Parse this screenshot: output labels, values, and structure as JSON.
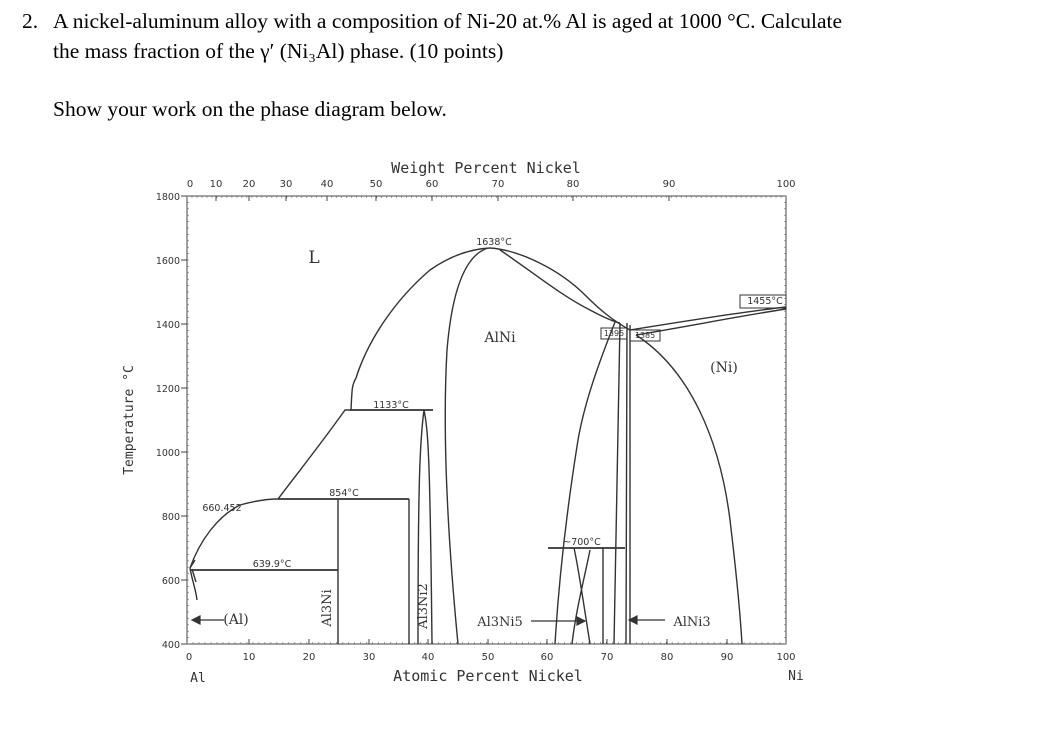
{
  "question": {
    "number": "2.",
    "line1": "A nickel-aluminum alloy with a composition of Ni-20 at.% Al is aged at 1000 °C. Calculate",
    "line2": "the mass fraction of the γ′ (Ni₃Al) phase. (10 points)",
    "instruction": "Show your work on the phase diagram below."
  },
  "diagram": {
    "top_axis_title": "Weight Percent Nickel",
    "bottom_axis_title": "Atomic Percent Nickel",
    "y_axis_title": "Temperature °C",
    "left_element": "Al",
    "right_element": "Ni",
    "top_ticks": [
      "0",
      "10",
      "20",
      "30",
      "40",
      "50",
      "60",
      "70",
      "80",
      "90",
      "100"
    ],
    "bottom_ticks": [
      "0",
      "10",
      "20",
      "30",
      "40",
      "50",
      "60",
      "70",
      "80",
      "90",
      "100"
    ],
    "y_ticks": [
      "1800",
      "1600",
      "1400",
      "1200",
      "1000",
      "800",
      "600",
      "400"
    ],
    "y_range": [
      400,
      1800
    ],
    "x_range": [
      0,
      100
    ],
    "phase_labels": {
      "liquid": "L",
      "alni": "AlNi",
      "ni_ss": "(Ni)",
      "al_ss": "(Al)",
      "al3ni": "Al3Ni",
      "al3ni2": "Al3Ni2",
      "al3ni5": "Al3Ni5",
      "alni3": "AlNi3"
    },
    "temperature_labels": {
      "t1638": "1638°C",
      "t1455": "1455°C",
      "t1395": "1395",
      "t1385": "1385",
      "t1133": "1133°C",
      "t854": "854°C",
      "t660": "660.452",
      "t639": "639.9°C",
      "t700": "~700°C"
    }
  }
}
